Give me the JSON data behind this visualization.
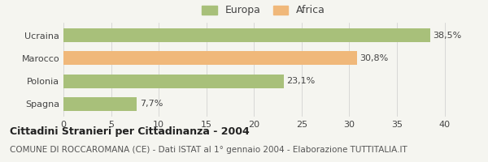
{
  "categories": [
    "Ucraina",
    "Marocco",
    "Polonia",
    "Spagna"
  ],
  "values": [
    38.5,
    30.8,
    23.1,
    7.7
  ],
  "labels": [
    "38,5%",
    "30,8%",
    "23,1%",
    "7,7%"
  ],
  "bar_colors": [
    "#a8c07a",
    "#f0b87a",
    "#a8c07a",
    "#a8c07a"
  ],
  "legend_items": [
    {
      "label": "Europa",
      "color": "#a8c07a"
    },
    {
      "label": "Africa",
      "color": "#f0b87a"
    }
  ],
  "xlim": [
    0,
    42
  ],
  "xticks": [
    0,
    5,
    10,
    15,
    20,
    25,
    30,
    35,
    40
  ],
  "title_bold": "Cittadini Stranieri per Cittadinanza - 2004",
  "subtitle": "COMUNE DI ROCCAROMANA (CE) - Dati ISTAT al 1° gennaio 2004 - Elaborazione TUTTITALIA.IT",
  "background_color": "#f5f5f0",
  "bar_height": 0.6,
  "title_fontsize": 9,
  "subtitle_fontsize": 7.5,
  "tick_fontsize": 8,
  "label_fontsize": 8,
  "legend_fontsize": 9
}
